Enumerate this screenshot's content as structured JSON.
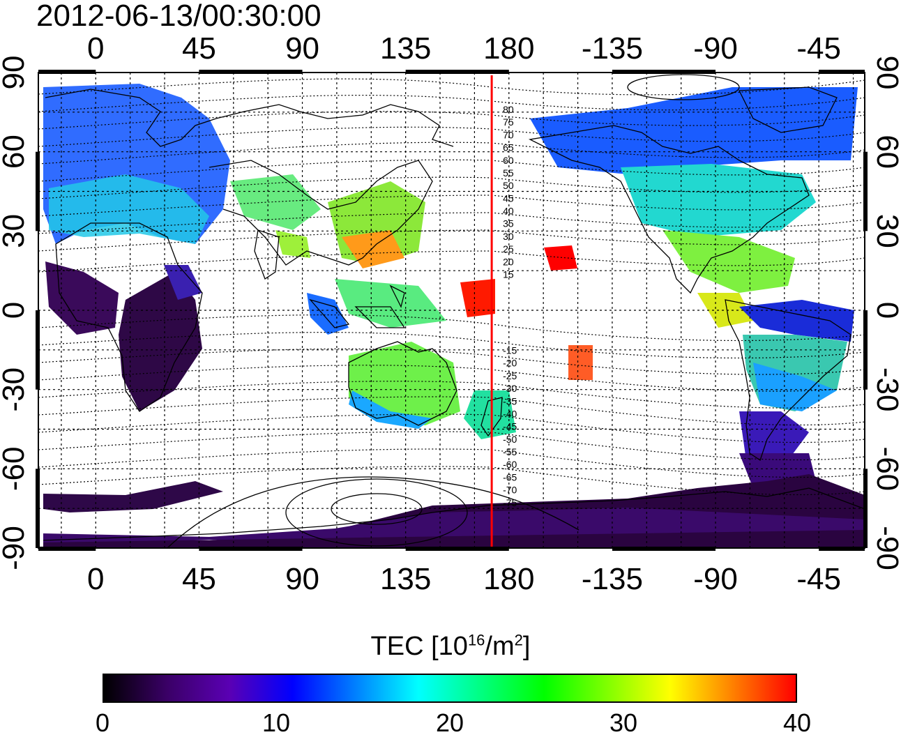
{
  "title": "2012-06-13/00:30:00",
  "lon_ticks": [
    "0",
    "45",
    "90",
    "135",
    "180",
    "-135",
    "-90",
    "-45"
  ],
  "lat_ticks": [
    "90",
    "60",
    "30",
    "0",
    "-30",
    "-60",
    "-90"
  ],
  "contour_labels": [
    "80",
    "75",
    "70",
    "65",
    "60",
    "55",
    "50",
    "45",
    "40",
    "35",
    "30",
    "25",
    "20",
    "15",
    "-15",
    "-20",
    "-25",
    "-30",
    "-35",
    "-40",
    "-45",
    "-50",
    "-55",
    "-60",
    "-65",
    "-70",
    "-75"
  ],
  "marker_line": {
    "lon": 172.5,
    "color": "#ff0000"
  },
  "colorbar": {
    "title_prefix": "TEC  [10",
    "title_sup1": "16",
    "title_mid": "/m",
    "title_sup2": "2",
    "title_suffix": "]",
    "min": 0,
    "max": 40,
    "tick_labels": [
      "0",
      "10",
      "20",
      "30",
      "40"
    ],
    "stops": [
      "#000000",
      "#3a0066",
      "#5a00b4",
      "#0000ff",
      "#0080ff",
      "#00ffff",
      "#00ff80",
      "#00ff00",
      "#80ff00",
      "#ffff00",
      "#ff8000",
      "#ff0000"
    ]
  },
  "colors": {
    "frame": "#000000",
    "low_tec": "#3a0a5a",
    "high_tec": "#ff0000"
  }
}
